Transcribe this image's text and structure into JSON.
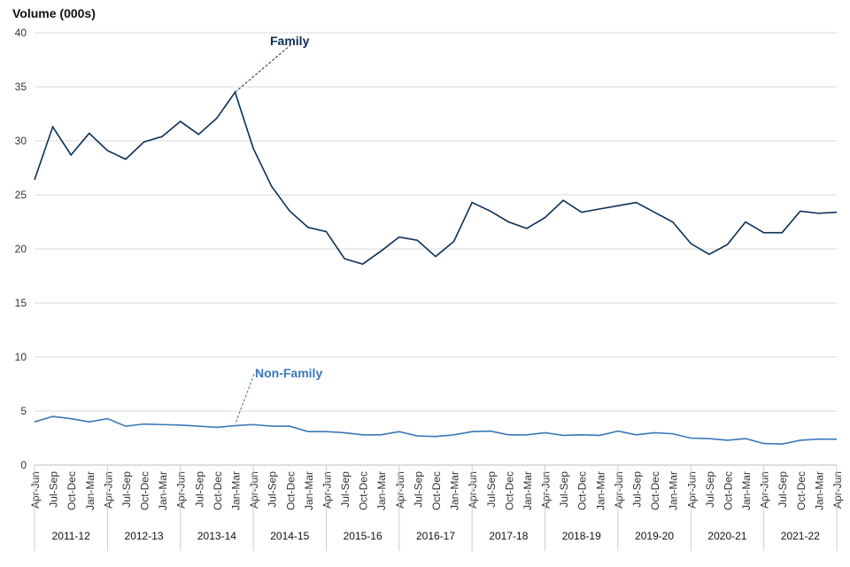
{
  "chart_data": {
    "type": "line",
    "ylabel": "Volume (000s)",
    "ylim": [
      0,
      40
    ],
    "yticks": [
      0,
      5,
      10,
      15,
      20,
      25,
      30,
      35,
      40
    ],
    "grid": true,
    "quarters": [
      "Apr-Jun",
      "Jul-Sep",
      "Oct-Dec",
      "Jan-Mar"
    ],
    "years": [
      "2011-12",
      "2012-13",
      "2013-14",
      "2014-15",
      "2015-16",
      "2016-17",
      "2017-18",
      "2018-19",
      "2019-20",
      "2020-21",
      "2021-22"
    ],
    "final_quarter": "Apr-Jun",
    "series": [
      {
        "name": "Family",
        "color": "#0b2f55",
        "values": [
          26.4,
          31.3,
          28.7,
          30.7,
          29.1,
          28.3,
          29.9,
          30.4,
          31.8,
          30.6,
          32.1,
          34.5,
          29.3,
          25.8,
          23.5,
          22.0,
          21.6,
          19.1,
          18.6,
          19.8,
          21.1,
          20.8,
          19.3,
          20.7,
          24.3,
          23.5,
          22.5,
          21.9,
          22.9,
          24.5,
          23.4,
          23.7,
          24.0,
          24.3,
          23.4,
          22.5,
          20.5,
          19.5,
          20.4,
          22.5,
          21.5,
          21.5,
          23.5,
          23.3,
          23.4
        ]
      },
      {
        "name": "Non-Family",
        "color": "#3a78b5",
        "values": [
          4.0,
          4.5,
          4.3,
          4.0,
          4.3,
          3.6,
          3.8,
          3.75,
          3.7,
          3.6,
          3.5,
          3.65,
          3.75,
          3.6,
          3.6,
          3.1,
          3.1,
          3.0,
          2.8,
          2.8,
          3.1,
          2.7,
          2.65,
          2.8,
          3.1,
          3.15,
          2.8,
          2.8,
          3.0,
          2.75,
          2.8,
          2.75,
          3.15,
          2.8,
          3.0,
          2.9,
          2.5,
          2.45,
          2.3,
          2.45,
          2.0,
          1.95,
          2.3,
          2.4,
          2.4
        ]
      }
    ]
  }
}
